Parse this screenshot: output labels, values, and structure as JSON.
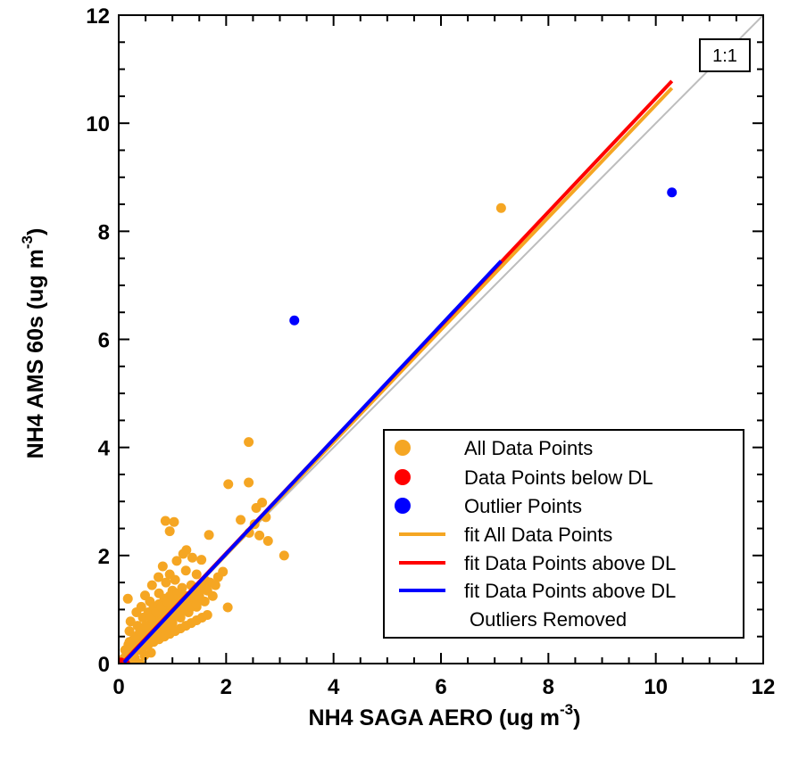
{
  "chart_data": {
    "type": "scatter",
    "title": "",
    "xlabel": "NH4 SAGA AERO (ug m",
    "xlabel_superscript": "-3",
    "xlabel_suffix": ")",
    "ylabel": "NH4 AMS 60s (ug m",
    "ylabel_superscript": "-3",
    "ylabel_suffix": ")",
    "xlim": [
      0,
      12
    ],
    "ylim": [
      0,
      12
    ],
    "xticks": [
      0,
      2,
      4,
      6,
      8,
      10,
      12
    ],
    "yticks": [
      0,
      2,
      4,
      6,
      8,
      10,
      12
    ],
    "grid": false,
    "legend_position": "bottom-right",
    "reference_line": {
      "label": "1:1",
      "x": [
        0,
        12
      ],
      "y": [
        0,
        12
      ],
      "color": "#bdbdbd"
    },
    "series": [
      {
        "name": "All Data Points",
        "kind": "points",
        "color": "#f5a623",
        "points": [
          [
            2.42,
            4.1
          ],
          [
            2.04,
            3.32
          ],
          [
            2.42,
            3.35
          ],
          [
            2.67,
            2.98
          ],
          [
            2.56,
            2.88
          ],
          [
            2.27,
            2.66
          ],
          [
            2.53,
            2.58
          ],
          [
            2.43,
            2.42
          ],
          [
            2.62,
            2.37
          ],
          [
            2.78,
            2.27
          ],
          [
            2.74,
            2.71
          ],
          [
            3.08,
            2.0
          ],
          [
            0.87,
            2.64
          ],
          [
            1.03,
            2.62
          ],
          [
            0.95,
            2.45
          ],
          [
            1.26,
            2.1
          ],
          [
            1.68,
            2.38
          ],
          [
            1.2,
            2.03
          ],
          [
            1.37,
            1.96
          ],
          [
            1.54,
            1.92
          ],
          [
            1.08,
            1.9
          ],
          [
            0.82,
            1.8
          ],
          [
            0.95,
            1.65
          ],
          [
            0.74,
            1.6
          ],
          [
            1.62,
            1.53
          ],
          [
            1.45,
            1.65
          ],
          [
            1.25,
            1.72
          ],
          [
            1.05,
            1.55
          ],
          [
            0.62,
            1.45
          ],
          [
            0.49,
            1.26
          ],
          [
            0.88,
            1.5
          ],
          [
            0.17,
            1.2
          ],
          [
            0.42,
            1.05
          ],
          [
            0.33,
            0.95
          ],
          [
            0.22,
            0.78
          ],
          [
            0.58,
            1.15
          ],
          [
            0.75,
            1.3
          ],
          [
            1.0,
            1.35
          ],
          [
            1.18,
            1.4
          ],
          [
            1.35,
            1.45
          ],
          [
            1.5,
            1.35
          ],
          [
            1.7,
            1.5
          ],
          [
            1.85,
            1.6
          ],
          [
            1.94,
            1.7
          ],
          [
            2.03,
            1.04
          ],
          [
            1.75,
            1.25
          ],
          [
            1.6,
            1.15
          ],
          [
            1.45,
            1.05
          ],
          [
            1.3,
            0.95
          ],
          [
            1.15,
            0.85
          ],
          [
            1.0,
            0.75
          ],
          [
            0.9,
            0.68
          ],
          [
            0.8,
            0.6
          ],
          [
            0.7,
            0.55
          ],
          [
            0.6,
            0.5
          ],
          [
            0.5,
            0.45
          ],
          [
            0.4,
            0.38
          ],
          [
            0.3,
            0.3
          ],
          [
            0.25,
            0.2
          ],
          [
            0.15,
            0.15
          ],
          [
            0.2,
            0.6
          ],
          [
            0.35,
            0.7
          ],
          [
            0.45,
            0.85
          ],
          [
            0.55,
            0.95
          ],
          [
            0.65,
            1.05
          ],
          [
            0.75,
            1.1
          ],
          [
            0.85,
            1.2
          ],
          [
            0.95,
            1.25
          ],
          [
            1.05,
            1.15
          ],
          [
            1.15,
            1.2
          ],
          [
            1.25,
            1.25
          ],
          [
            1.4,
            1.3
          ],
          [
            1.55,
            1.4
          ],
          [
            1.65,
            1.35
          ],
          [
            1.8,
            1.45
          ],
          [
            0.5,
            0.65
          ],
          [
            0.6,
            0.75
          ],
          [
            0.7,
            0.8
          ],
          [
            0.8,
            0.9
          ],
          [
            0.9,
            1.0
          ],
          [
            1.0,
            1.05
          ],
          [
            1.1,
            1.0
          ],
          [
            1.2,
            1.1
          ],
          [
            1.3,
            1.15
          ],
          [
            1.4,
            1.2
          ],
          [
            1.5,
            1.25
          ],
          [
            0.55,
            0.55
          ],
          [
            0.65,
            0.65
          ],
          [
            0.75,
            0.7
          ],
          [
            0.85,
            0.8
          ],
          [
            0.95,
            0.85
          ],
          [
            1.05,
            0.9
          ],
          [
            1.15,
            0.95
          ],
          [
            1.25,
            1.0
          ],
          [
            1.35,
            1.05
          ],
          [
            1.45,
            1.1
          ],
          [
            0.45,
            0.5
          ],
          [
            0.38,
            0.55
          ],
          [
            0.28,
            0.45
          ],
          [
            0.18,
            0.35
          ],
          [
            0.1,
            0.1
          ],
          [
            0.12,
            0.25
          ],
          [
            0.2,
            0.4
          ],
          [
            0.3,
            0.5
          ],
          [
            0.4,
            0.6
          ],
          [
            0.5,
            0.7
          ],
          [
            0.6,
            0.85
          ],
          [
            0.7,
            0.95
          ],
          [
            0.8,
            1.05
          ],
          [
            0.9,
            1.15
          ],
          [
            1.0,
            1.25
          ],
          [
            1.1,
            1.3
          ],
          [
            0.35,
            0.25
          ],
          [
            0.45,
            0.3
          ],
          [
            0.55,
            0.35
          ],
          [
            0.65,
            0.4
          ],
          [
            0.75,
            0.45
          ],
          [
            0.85,
            0.5
          ],
          [
            0.95,
            0.55
          ],
          [
            1.05,
            0.6
          ],
          [
            1.15,
            0.65
          ],
          [
            1.25,
            0.7
          ],
          [
            1.35,
            0.75
          ],
          [
            1.45,
            0.8
          ],
          [
            1.55,
            0.85
          ],
          [
            1.65,
            0.9
          ],
          [
            0.6,
            0.2
          ],
          [
            0.48,
            0.15
          ],
          [
            0.4,
            0.0
          ],
          [
            0.3,
            0.1
          ],
          [
            0.22,
            0.05
          ],
          [
            0.08,
            0.05
          ],
          [
            0.05,
            0.0
          ],
          [
            7.12,
            8.43
          ]
        ]
      },
      {
        "name": "Data Points below DL",
        "kind": "points",
        "color": "#ff0000",
        "points": [
          [
            0.0,
            0.0
          ],
          [
            0.03,
            0.0
          ],
          [
            0.06,
            0.0
          ],
          [
            0.09,
            0.0
          ],
          [
            0.12,
            0.0
          ],
          [
            0.04,
            0.02
          ]
        ]
      },
      {
        "name": "Outlier Points",
        "kind": "points",
        "color": "#0000ff",
        "points": [
          [
            3.27,
            6.35
          ],
          [
            10.3,
            8.72
          ]
        ]
      },
      {
        "name": "fit All Data Points",
        "kind": "line",
        "color": "#f5a623",
        "x": [
          0.08,
          10.3
        ],
        "y": [
          0.02,
          10.65
        ]
      },
      {
        "name": "fit Data Points above DL",
        "kind": "line",
        "color": "#ff0000",
        "x": [
          0.08,
          10.3
        ],
        "y": [
          0.02,
          10.78
        ]
      },
      {
        "name": "fit Data Points above DL",
        "name_line2": "Outliers Removed",
        "kind": "line",
        "color": "#0000ff",
        "x": [
          0.1,
          7.12
        ],
        "y": [
          0.02,
          7.45
        ]
      }
    ]
  }
}
